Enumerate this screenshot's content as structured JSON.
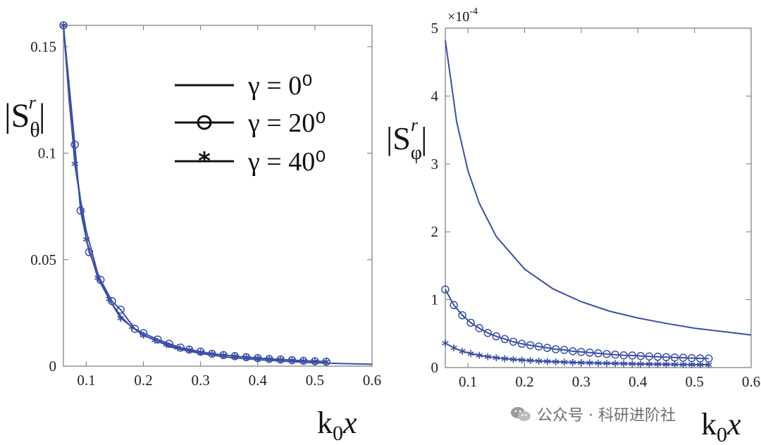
{
  "chart_data": [
    {
      "type": "line",
      "xlabel": "k0x",
      "ylabel": "|Sθr|",
      "xlim": [
        0.06,
        0.6
      ],
      "ylim": [
        0,
        0.16
      ],
      "xticks": [
        0.1,
        0.2,
        0.3,
        0.4,
        0.5,
        0.6
      ],
      "xtick_labels": [
        "0.1",
        "0.2",
        "0.3",
        "0.4",
        "0.5",
        "0.6"
      ],
      "yticks": [
        0,
        0.05,
        0.1,
        0.15
      ],
      "ytick_labels": [
        "0",
        "0.05",
        "0.1",
        "0.15"
      ],
      "legend": {
        "position": "top-right",
        "entries": [
          {
            "label": "γ = 0⁰",
            "marker": "none"
          },
          {
            "label": "γ = 20⁰",
            "marker": "circle"
          },
          {
            "label": "γ = 40⁰",
            "marker": "star"
          }
        ]
      },
      "series": [
        {
          "name": "γ = 0⁰",
          "marker": "none",
          "color": "#3a4fa8",
          "x": [
            0.06,
            0.07,
            0.08,
            0.09,
            0.1,
            0.12,
            0.14,
            0.16,
            0.18,
            0.2,
            0.25,
            0.3,
            0.35,
            0.4,
            0.45,
            0.5,
            0.55,
            0.6
          ],
          "y": [
            0.16,
            0.125,
            0.0975,
            0.078,
            0.0635,
            0.0435,
            0.0312,
            0.0235,
            0.0182,
            0.0145,
            0.0088,
            0.0059,
            0.0041,
            0.003,
            0.0022,
            0.0016,
            0.0012,
            0.0009
          ]
        },
        {
          "name": "γ = 20⁰",
          "marker": "circle",
          "color": "#3a4fa8",
          "x": [
            0.06,
            0.08,
            0.09,
            0.105,
            0.125,
            0.145,
            0.16,
            0.185,
            0.2,
            0.225,
            0.245,
            0.265,
            0.28,
            0.3,
            0.32,
            0.34,
            0.36,
            0.38,
            0.4,
            0.42,
            0.44,
            0.46,
            0.48,
            0.5,
            0.52
          ],
          "y": [
            0.16,
            0.104,
            0.073,
            0.0535,
            0.0405,
            0.0305,
            0.0265,
            0.0175,
            0.0155,
            0.0125,
            0.0105,
            0.0087,
            0.0078,
            0.0068,
            0.0058,
            0.0052,
            0.0047,
            0.0042,
            0.0038,
            0.0034,
            0.0031,
            0.0028,
            0.0025,
            0.0023,
            0.0021
          ]
        },
        {
          "name": "γ = 40⁰",
          "marker": "star",
          "color": "#3a4fa8",
          "x": [
            0.06,
            0.08,
            0.1,
            0.12,
            0.14,
            0.16,
            0.18,
            0.2,
            0.22,
            0.24,
            0.26,
            0.28,
            0.3,
            0.32,
            0.34,
            0.36,
            0.38,
            0.4,
            0.42,
            0.44,
            0.46,
            0.48,
            0.5,
            0.52
          ],
          "y": [
            0.16,
            0.095,
            0.0595,
            0.0415,
            0.0315,
            0.0225,
            0.0185,
            0.0145,
            0.0122,
            0.0102,
            0.0087,
            0.0076,
            0.0065,
            0.0058,
            0.0052,
            0.0047,
            0.0042,
            0.0038,
            0.0034,
            0.0031,
            0.0028,
            0.0025,
            0.0023,
            0.0021
          ]
        }
      ]
    },
    {
      "type": "line",
      "xlabel": "k0x",
      "ylabel": "|Sφr|",
      "exponent_label": "×10-4",
      "xlim": [
        0.06,
        0.6
      ],
      "ylim": [
        0,
        5
      ],
      "xticks": [
        0.1,
        0.2,
        0.3,
        0.4,
        0.5,
        0.6
      ],
      "xtick_labels": [
        "0.1",
        "0.2",
        "0.3",
        "0.4",
        "0.5",
        "0.6"
      ],
      "yticks": [
        0,
        1,
        2,
        3,
        4,
        5
      ],
      "ytick_labels": [
        "0",
        "1",
        "2",
        "3",
        "4",
        "5"
      ],
      "series": [
        {
          "name": "γ = 0⁰",
          "marker": "none",
          "color": "#3a4fa8",
          "x": [
            0.06,
            0.08,
            0.1,
            0.12,
            0.15,
            0.2,
            0.25,
            0.3,
            0.35,
            0.4,
            0.45,
            0.5,
            0.55,
            0.6
          ],
          "y": [
            4.82,
            3.62,
            2.9,
            2.42,
            1.93,
            1.45,
            1.16,
            0.97,
            0.83,
            0.73,
            0.65,
            0.58,
            0.53,
            0.48
          ]
        },
        {
          "name": "γ = 20⁰",
          "marker": "circle",
          "color": "#3a4fa8",
          "x": [
            0.06,
            0.075,
            0.09,
            0.105,
            0.12,
            0.135,
            0.15,
            0.165,
            0.18,
            0.195,
            0.21,
            0.225,
            0.24,
            0.255,
            0.27,
            0.285,
            0.3,
            0.315,
            0.33,
            0.345,
            0.36,
            0.375,
            0.39,
            0.405,
            0.42,
            0.435,
            0.45,
            0.465,
            0.48,
            0.495,
            0.51,
            0.525
          ],
          "y": [
            1.15,
            0.92,
            0.77,
            0.66,
            0.58,
            0.51,
            0.46,
            0.42,
            0.38,
            0.35,
            0.33,
            0.31,
            0.29,
            0.27,
            0.26,
            0.24,
            0.23,
            0.22,
            0.21,
            0.2,
            0.19,
            0.18,
            0.177,
            0.17,
            0.164,
            0.159,
            0.153,
            0.148,
            0.144,
            0.139,
            0.135,
            0.132
          ]
        },
        {
          "name": "γ = 40⁰",
          "marker": "star",
          "color": "#3a4fa8",
          "x": [
            0.06,
            0.075,
            0.09,
            0.105,
            0.12,
            0.135,
            0.15,
            0.165,
            0.18,
            0.195,
            0.21,
            0.225,
            0.24,
            0.255,
            0.27,
            0.285,
            0.3,
            0.315,
            0.33,
            0.345,
            0.36,
            0.375,
            0.39,
            0.405,
            0.42,
            0.435,
            0.45,
            0.465,
            0.48,
            0.495,
            0.51,
            0.525
          ],
          "y": [
            0.36,
            0.29,
            0.24,
            0.206,
            0.18,
            0.16,
            0.144,
            0.131,
            0.12,
            0.111,
            0.103,
            0.096,
            0.09,
            0.085,
            0.08,
            0.076,
            0.072,
            0.069,
            0.065,
            0.063,
            0.06,
            0.058,
            0.055,
            0.053,
            0.051,
            0.05,
            0.048,
            0.046,
            0.045,
            0.044,
            0.042,
            0.041
          ]
        }
      ]
    }
  ],
  "watermark": {
    "icon": "wechat-icon",
    "text": "公众号 · 科研进阶社"
  }
}
